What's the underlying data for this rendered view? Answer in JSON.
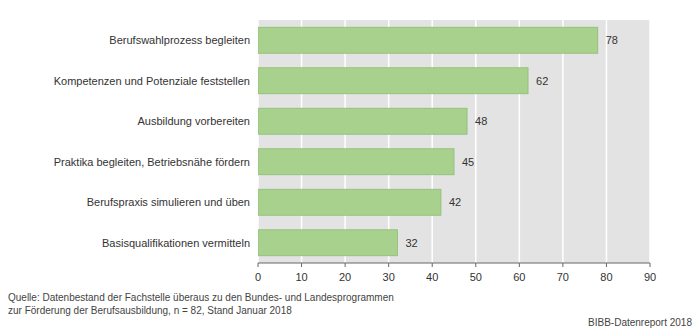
{
  "chart_data": {
    "type": "bar",
    "orientation": "horizontal",
    "categories": [
      "Berufswahlprozess begleiten",
      "Kompetenzen und Potenziale feststellen",
      "Ausbildung vorbereiten",
      "Praktika begleiten, Betriebsnähe fördern",
      "Berufspraxis simulieren und üben",
      "Basisqualifikationen vermitteln"
    ],
    "values": [
      78,
      62,
      48,
      45,
      42,
      32
    ],
    "color": "#a9d18e",
    "xlim": [
      0,
      90
    ],
    "xticks": [
      0,
      10,
      20,
      30,
      40,
      50,
      60,
      70,
      80,
      90
    ],
    "grid": true,
    "data_labels": true,
    "source": [
      "Quelle: Datenbestand der Fachstelle überaus zu den Bundes- und Landesprogrammen",
      "zur Förderung der Berufsausbildung, n = 82, Stand Januar 2018"
    ],
    "credit": "BIBB-Datenreport 2018"
  }
}
